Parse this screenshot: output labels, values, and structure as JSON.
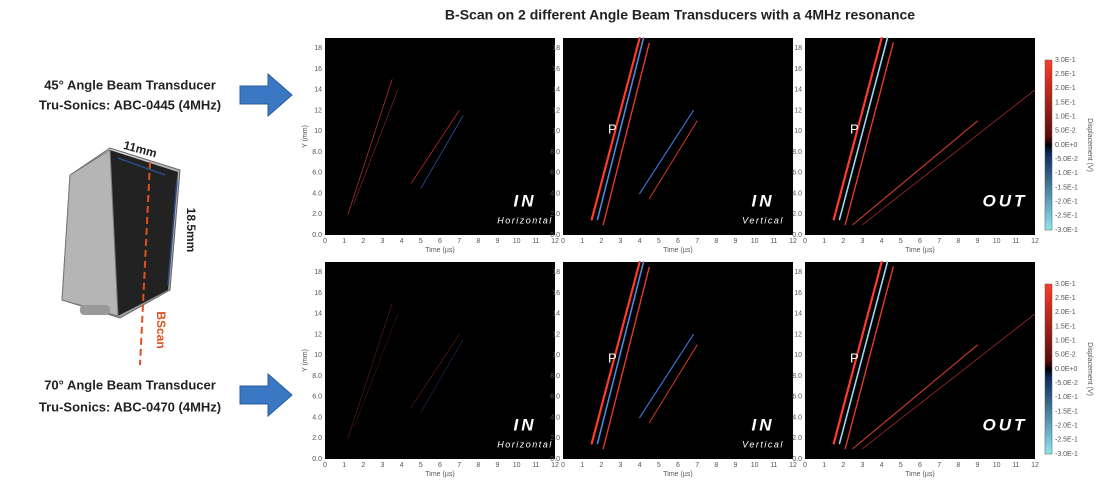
{
  "title": "B-Scan on 2 different Angle Beam Transducers with a 4MHz resonance",
  "transducers": [
    {
      "angle": "45° Angle Beam Transducer",
      "model": "Tru-Sonics: ABC-0445 (4MHz)"
    },
    {
      "angle": "70° Angle Beam Transducer",
      "model": "Tru-Sonics: ABC-0470 (4MHz)"
    }
  ],
  "probe": {
    "width": "11mm",
    "height": "18.5mm",
    "scan": "BScan"
  },
  "panels": [
    {
      "label": "IN",
      "sub": "Horizontal"
    },
    {
      "label": "IN",
      "sub": "Vertical"
    },
    {
      "label": "OUT"
    }
  ],
  "wave_label": "P",
  "y_axis": {
    "label": "Y (mm)",
    "ticks": [
      "0.0",
      "2.0",
      "4.0",
      "6.0",
      "8.0",
      "10",
      "12",
      "14",
      "16",
      "18"
    ]
  },
  "x_axis": {
    "label": "Time (µs)",
    "ticks": [
      "0",
      "1",
      "2",
      "3",
      "4",
      "5",
      "6",
      "7",
      "8",
      "9",
      "10",
      "11",
      "12"
    ]
  },
  "colorbar": {
    "label": "Displacement (V)",
    "ticks": [
      "3.0E-1",
      "2.5E-1",
      "2.0E-1",
      "1.5E-1",
      "1.0E-1",
      "5.0E-2",
      "0.0E+0",
      "-5.0E-2",
      "-1.0E-1",
      "-1.5E-1",
      "-2.0E-1",
      "-2.5E-1",
      "-3.0E-1"
    ]
  }
}
